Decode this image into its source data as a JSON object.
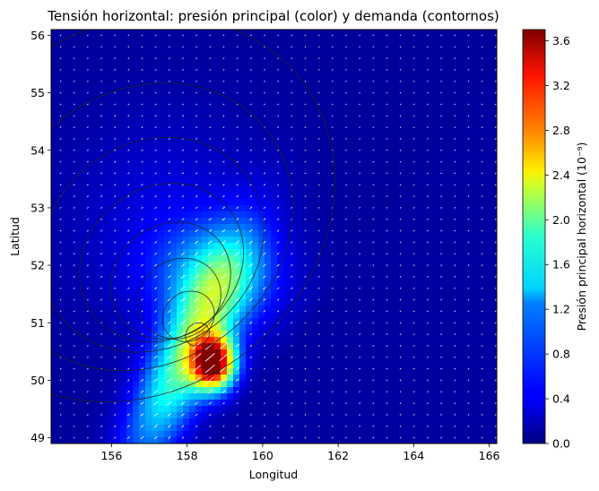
{
  "chart_data": {
    "type": "heatmap",
    "title": "Tensión horizontal: presión principal (color) y demanda (contornos)",
    "xlabel": "Longitud",
    "ylabel": "Latitud",
    "colorbar_label": "Presión principal horizontal (10⁻⁹)",
    "xlim": [
      154.4,
      166.2
    ],
    "ylim": [
      48.9,
      56.1
    ],
    "x_ticks": [
      "156",
      "158",
      "160",
      "162",
      "164",
      "166"
    ],
    "y_ticks": [
      "49",
      "50",
      "51",
      "52",
      "53",
      "54",
      "55",
      "56"
    ],
    "colorbar_range": [
      0.0,
      3.7
    ],
    "colorbar_ticks": [
      "0.0",
      "0.4",
      "0.8",
      "1.2",
      "1.6",
      "2.0",
      "2.4",
      "2.8",
      "3.2",
      "3.6"
    ],
    "colormap": "jet",
    "contour_color": "#222222",
    "vector_color": "#ffffff",
    "peak": {
      "lon": 158.7,
      "lat": 50.3,
      "value": 3.6
    },
    "field_features": [
      {
        "lon": 158.7,
        "lat": 50.3,
        "value": 3.6
      },
      {
        "lon": 158.2,
        "lat": 50.7,
        "value": 2.6
      },
      {
        "lon": 157.3,
        "lat": 49.5,
        "value": 2.2
      },
      {
        "lon": 158.8,
        "lat": 51.8,
        "value": 1.3
      },
      {
        "lon": 160.5,
        "lat": 52.1,
        "value": 1.2
      },
      {
        "lon": 157.5,
        "lat": 52.8,
        "value": 0.4
      },
      {
        "lon": 163.5,
        "lat": 53.0,
        "value": 0.1
      }
    ]
  }
}
